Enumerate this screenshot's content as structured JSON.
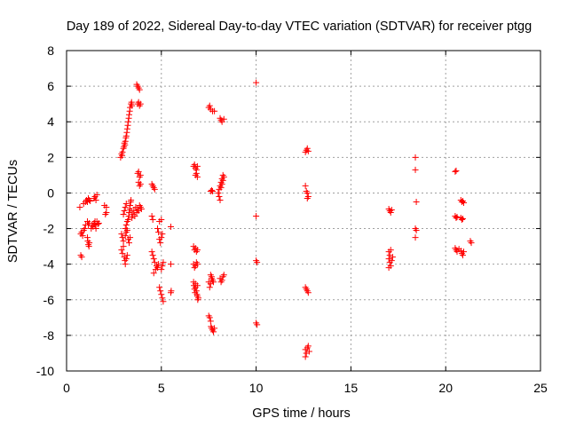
{
  "chart_data": {
    "type": "scatter",
    "title": "Day 189 of 2022, Sidereal Day-to-day VTEC variation (SDTVAR) for receiver ptgg",
    "xlabel": "GPS time / hours",
    "ylabel": "SDTVAR / TECUs",
    "xlim": [
      0,
      25
    ],
    "ylim": [
      -10,
      8
    ],
    "x_ticks": [
      0,
      5,
      10,
      15,
      20,
      25
    ],
    "y_ticks": [
      -10,
      -8,
      -6,
      -4,
      -2,
      0,
      2,
      4,
      6,
      8
    ],
    "x_tick_labels": [
      "0",
      "5",
      "10",
      "15",
      "20",
      "25"
    ],
    "y_tick_labels": [
      "-10",
      "-8",
      "-6",
      "-4",
      "-2",
      "0",
      "2",
      "4",
      "6",
      "8"
    ],
    "grid": true,
    "marker": "+",
    "colors": {
      "marker": "#ff0000",
      "grid": "#a0a0a0",
      "axis": "#000000"
    },
    "series": [
      {
        "name": "SDTVAR",
        "points": [
          [
            0.7,
            -0.8
          ],
          [
            0.75,
            -3.5
          ],
          [
            0.8,
            -3.6
          ],
          [
            0.75,
            -2.3
          ],
          [
            0.8,
            -2.2
          ],
          [
            0.85,
            -2.4
          ],
          [
            0.9,
            -2.1
          ],
          [
            0.95,
            -2.0
          ],
          [
            1.0,
            -1.8
          ],
          [
            0.9,
            -0.6
          ],
          [
            1.0,
            -0.5
          ],
          [
            1.05,
            -0.4
          ],
          [
            1.1,
            -0.5
          ],
          [
            1.15,
            -0.3
          ],
          [
            1.2,
            -0.4
          ],
          [
            1.25,
            -0.45
          ],
          [
            1.1,
            -2.5
          ],
          [
            1.12,
            -2.7
          ],
          [
            1.15,
            -2.9
          ],
          [
            1.18,
            -3.0
          ],
          [
            1.2,
            -2.8
          ],
          [
            1.1,
            -1.6
          ],
          [
            1.15,
            -1.8
          ],
          [
            1.2,
            -1.7
          ],
          [
            1.3,
            -2.0
          ],
          [
            1.35,
            -1.8
          ],
          [
            1.4,
            -1.9
          ],
          [
            1.45,
            -1.7
          ],
          [
            1.5,
            -1.6
          ],
          [
            1.5,
            -1.8
          ],
          [
            1.55,
            -2.0
          ],
          [
            1.45,
            -0.3
          ],
          [
            1.5,
            -0.2
          ],
          [
            1.55,
            -0.4
          ],
          [
            1.6,
            -0.1
          ],
          [
            1.6,
            -1.6
          ],
          [
            1.65,
            -1.75
          ],
          [
            1.7,
            -1.7
          ],
          [
            2.0,
            -0.7
          ],
          [
            2.05,
            -1.2
          ],
          [
            2.1,
            -1.1
          ],
          [
            2.1,
            -0.8
          ],
          [
            2.85,
            2.0
          ],
          [
            2.9,
            2.2
          ],
          [
            2.93,
            2.1
          ],
          [
            2.95,
            2.3
          ],
          [
            3.0,
            2.5
          ],
          [
            3.03,
            2.6
          ],
          [
            3.05,
            2.8
          ],
          [
            3.08,
            2.7
          ],
          [
            3.1,
            2.9
          ],
          [
            3.13,
            3.1
          ],
          [
            3.15,
            3.2
          ],
          [
            3.18,
            3.4
          ],
          [
            3.2,
            3.6
          ],
          [
            3.23,
            3.8
          ],
          [
            3.25,
            4.0
          ],
          [
            3.28,
            4.2
          ],
          [
            3.3,
            4.4
          ],
          [
            3.33,
            4.6
          ],
          [
            3.35,
            4.8
          ],
          [
            3.4,
            5.0
          ],
          [
            3.43,
            5.1
          ],
          [
            3.45,
            4.9
          ],
          [
            2.9,
            -2.3
          ],
          [
            2.95,
            -2.5
          ],
          [
            3.0,
            -2.7
          ],
          [
            2.9,
            -3.2
          ],
          [
            2.95,
            -3.4
          ],
          [
            3.0,
            -3.0
          ],
          [
            3.05,
            -3.6
          ],
          [
            3.08,
            -3.8
          ],
          [
            3.1,
            -4.0
          ],
          [
            3.15,
            -3.7
          ],
          [
            3.2,
            -3.5
          ],
          [
            3.1,
            -2.0
          ],
          [
            3.15,
            -1.8
          ],
          [
            3.2,
            -1.6
          ],
          [
            3.25,
            -1.5
          ],
          [
            3.28,
            -1.3
          ],
          [
            3.3,
            -1.1
          ],
          [
            3.33,
            -0.9
          ],
          [
            3.35,
            -0.7
          ],
          [
            3.38,
            -0.5
          ],
          [
            3.4,
            -0.4
          ],
          [
            3.42,
            -1.0
          ],
          [
            3.45,
            -1.4
          ],
          [
            3.1,
            -2.4
          ],
          [
            3.15,
            -2.2
          ],
          [
            3.2,
            -2.1
          ],
          [
            3.25,
            -2.6
          ],
          [
            3.3,
            -2.8
          ],
          [
            3.35,
            -2.5
          ],
          [
            3.0,
            -1.2
          ],
          [
            3.05,
            -1.0
          ],
          [
            3.1,
            -0.8
          ],
          [
            3.15,
            -0.6
          ],
          [
            3.5,
            -1.2
          ],
          [
            3.55,
            -1.0
          ],
          [
            3.6,
            -1.3
          ],
          [
            3.65,
            -0.8
          ],
          [
            3.7,
            -1.1
          ],
          [
            3.75,
            -0.9
          ],
          [
            3.8,
            -1.0
          ],
          [
            3.85,
            -0.7
          ],
          [
            3.9,
            -0.8
          ],
          [
            3.95,
            -0.9
          ],
          [
            3.7,
            6.1
          ],
          [
            3.75,
            6.0
          ],
          [
            3.8,
            5.9
          ],
          [
            3.85,
            5.8
          ],
          [
            3.75,
            5.0
          ],
          [
            3.8,
            5.1
          ],
          [
            3.85,
            4.9
          ],
          [
            3.9,
            5.0
          ],
          [
            3.75,
            1.1
          ],
          [
            3.8,
            1.2
          ],
          [
            3.85,
            0.9
          ],
          [
            3.9,
            1.0
          ],
          [
            3.8,
            0.6
          ],
          [
            3.85,
            0.4
          ],
          [
            3.9,
            0.5
          ],
          [
            4.5,
            -1.3
          ],
          [
            4.55,
            -1.5
          ],
          [
            4.5,
            0.5
          ],
          [
            4.55,
            0.4
          ],
          [
            4.6,
            0.3
          ],
          [
            4.65,
            0.2
          ],
          [
            4.5,
            -3.3
          ],
          [
            4.55,
            -3.5
          ],
          [
            4.6,
            -3.7
          ],
          [
            4.65,
            -3.9
          ],
          [
            4.6,
            -4.5
          ],
          [
            4.7,
            -4.3
          ],
          [
            4.75,
            -4.1
          ],
          [
            4.8,
            -4.2
          ],
          [
            4.85,
            -4.0
          ],
          [
            4.8,
            -2.0
          ],
          [
            4.85,
            -2.2
          ],
          [
            4.9,
            -2.6
          ],
          [
            4.95,
            -2.8
          ],
          [
            5.0,
            -2.5
          ],
          [
            5.05,
            -2.3
          ],
          [
            4.9,
            -1.6
          ],
          [
            5.0,
            -1.5
          ],
          [
            4.9,
            -5.3
          ],
          [
            4.95,
            -5.5
          ],
          [
            5.0,
            -5.7
          ],
          [
            5.05,
            -5.9
          ],
          [
            5.1,
            -6.1
          ],
          [
            5.0,
            -4.3
          ],
          [
            5.05,
            -4.1
          ],
          [
            5.1,
            -3.9
          ],
          [
            5.5,
            -1.9
          ],
          [
            5.5,
            -4.0
          ],
          [
            5.5,
            -5.6
          ],
          [
            5.52,
            -5.5
          ],
          [
            6.7,
            1.5
          ],
          [
            6.75,
            1.6
          ],
          [
            6.8,
            1.4
          ],
          [
            6.85,
            1.3
          ],
          [
            6.9,
            1.5
          ],
          [
            6.8,
            1.0
          ],
          [
            6.85,
            1.1
          ],
          [
            6.9,
            0.9
          ],
          [
            6.7,
            -3.0
          ],
          [
            6.75,
            -3.2
          ],
          [
            6.8,
            -3.1
          ],
          [
            6.85,
            -3.3
          ],
          [
            6.9,
            -3.2
          ],
          [
            6.7,
            -4.0
          ],
          [
            6.75,
            -4.2
          ],
          [
            6.8,
            -4.1
          ],
          [
            6.85,
            -3.9
          ],
          [
            6.9,
            -4.0
          ],
          [
            6.7,
            -5.0
          ],
          [
            6.72,
            -5.2
          ],
          [
            6.75,
            -5.4
          ],
          [
            6.78,
            -5.6
          ],
          [
            6.8,
            -5.3
          ],
          [
            6.85,
            -5.5
          ],
          [
            6.88,
            -5.7
          ],
          [
            6.9,
            -5.8
          ],
          [
            6.92,
            -6.0
          ],
          [
            6.95,
            -5.9
          ],
          [
            6.8,
            -5.1
          ],
          [
            6.9,
            -5.2
          ],
          [
            7.5,
            -5.0
          ],
          [
            7.55,
            -5.3
          ],
          [
            7.6,
            -5.1
          ],
          [
            7.65,
            -4.8
          ],
          [
            7.7,
            -4.9
          ],
          [
            7.75,
            -5.0
          ],
          [
            7.6,
            -4.6
          ],
          [
            7.65,
            -4.7
          ],
          [
            7.5,
            -6.9
          ],
          [
            7.55,
            -7.0
          ],
          [
            7.6,
            -7.2
          ],
          [
            7.62,
            -7.5
          ],
          [
            7.65,
            -7.6
          ],
          [
            7.7,
            -7.7
          ],
          [
            7.75,
            -7.8
          ],
          [
            7.8,
            -7.6
          ],
          [
            7.5,
            4.8
          ],
          [
            7.55,
            4.9
          ],
          [
            7.6,
            4.7
          ],
          [
            7.7,
            4.6
          ],
          [
            7.8,
            4.6
          ],
          [
            7.6,
            0.1
          ],
          [
            7.65,
            0.15
          ],
          [
            7.7,
            0.1
          ],
          [
            8.0,
            0.0
          ],
          [
            8.05,
            0.2
          ],
          [
            8.1,
            0.4
          ],
          [
            8.15,
            0.6
          ],
          [
            8.2,
            0.8
          ],
          [
            8.25,
            1.0
          ],
          [
            8.2,
            0.5
          ],
          [
            8.25,
            0.7
          ],
          [
            8.05,
            -0.2
          ],
          [
            8.1,
            -0.4
          ],
          [
            8.15,
            0.3
          ],
          [
            8.3,
            0.9
          ],
          [
            8.1,
            4.2
          ],
          [
            8.15,
            4.1
          ],
          [
            8.2,
            4.0
          ],
          [
            8.3,
            4.15
          ],
          [
            8.1,
            -4.8
          ],
          [
            8.15,
            -5.0
          ],
          [
            8.2,
            -4.9
          ],
          [
            8.25,
            -4.7
          ],
          [
            8.3,
            -4.6
          ],
          [
            10.0,
            6.2
          ],
          [
            10.0,
            -1.3
          ],
          [
            10.0,
            -3.8
          ],
          [
            10.05,
            -3.9
          ],
          [
            10.0,
            -7.3
          ],
          [
            10.05,
            -7.4
          ],
          [
            12.6,
            2.3
          ],
          [
            12.65,
            2.4
          ],
          [
            12.7,
            2.5
          ],
          [
            12.75,
            2.35
          ],
          [
            12.6,
            0.4
          ],
          [
            12.65,
            0.1
          ],
          [
            12.7,
            0.0
          ],
          [
            12.75,
            -0.2
          ],
          [
            12.7,
            -0.3
          ],
          [
            12.6,
            -5.3
          ],
          [
            12.65,
            -5.4
          ],
          [
            12.7,
            -5.5
          ],
          [
            12.75,
            -5.6
          ],
          [
            12.6,
            -8.8
          ],
          [
            12.65,
            -9.0
          ],
          [
            12.7,
            -8.7
          ],
          [
            12.75,
            -8.6
          ],
          [
            12.8,
            -8.9
          ],
          [
            12.6,
            -9.2
          ],
          [
            17.0,
            -0.9
          ],
          [
            17.05,
            -1.0
          ],
          [
            17.1,
            -1.1
          ],
          [
            17.15,
            -0.95
          ],
          [
            17.0,
            -3.3
          ],
          [
            17.05,
            -3.5
          ],
          [
            17.0,
            -3.7
          ],
          [
            17.05,
            -3.9
          ],
          [
            17.1,
            -4.1
          ],
          [
            17.15,
            -3.8
          ],
          [
            17.2,
            -3.6
          ],
          [
            17.1,
            -3.2
          ],
          [
            17.0,
            -4.2
          ],
          [
            18.4,
            2.0
          ],
          [
            18.4,
            1.3
          ],
          [
            18.45,
            -0.5
          ],
          [
            18.4,
            -2.0
          ],
          [
            18.45,
            -2.1
          ],
          [
            18.4,
            -2.5
          ],
          [
            20.5,
            1.2
          ],
          [
            20.55,
            1.25
          ],
          [
            20.5,
            -1.3
          ],
          [
            20.55,
            -1.4
          ],
          [
            20.6,
            -1.35
          ],
          [
            20.5,
            -3.1
          ],
          [
            20.55,
            -3.2
          ],
          [
            20.6,
            -3.3
          ],
          [
            20.7,
            -3.15
          ],
          [
            20.8,
            -3.25
          ],
          [
            20.8,
            -0.4
          ],
          [
            20.85,
            -0.5
          ],
          [
            20.9,
            -0.45
          ],
          [
            20.95,
            -0.55
          ],
          [
            20.8,
            -1.4
          ],
          [
            20.85,
            -1.5
          ],
          [
            20.9,
            -1.45
          ],
          [
            20.85,
            -3.4
          ],
          [
            20.9,
            -3.5
          ],
          [
            20.95,
            -3.3
          ],
          [
            21.3,
            -2.7
          ],
          [
            21.35,
            -2.8
          ]
        ]
      }
    ]
  }
}
